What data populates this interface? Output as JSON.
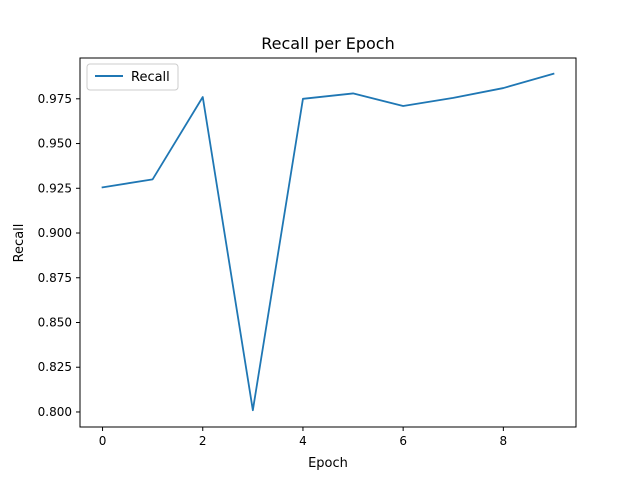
{
  "chart_data": {
    "type": "line",
    "title": "Recall per Epoch",
    "xlabel": "Epoch",
    "ylabel": "Recall",
    "x": [
      0,
      1,
      2,
      3,
      4,
      5,
      6,
      7,
      8,
      9
    ],
    "series": [
      {
        "name": "Recall",
        "color": "#1f77b4",
        "values": [
          0.9255,
          0.93,
          0.976,
          0.801,
          0.975,
          0.978,
          0.971,
          0.9755,
          0.981,
          0.989
        ]
      }
    ],
    "xlim": [
      -0.45,
      9.45
    ],
    "ylim": [
      0.7916,
      0.9978
    ],
    "x_ticks": [
      0,
      2,
      4,
      6,
      8
    ],
    "x_tick_labels": [
      "0",
      "2",
      "4",
      "6",
      "8"
    ],
    "y_ticks": [
      0.8,
      0.825,
      0.85,
      0.875,
      0.9,
      0.925,
      0.95,
      0.975
    ],
    "y_tick_labels": [
      "0.800",
      "0.825",
      "0.850",
      "0.875",
      "0.900",
      "0.925",
      "0.950",
      "0.975"
    ],
    "grid": false,
    "legend": "top-left"
  }
}
